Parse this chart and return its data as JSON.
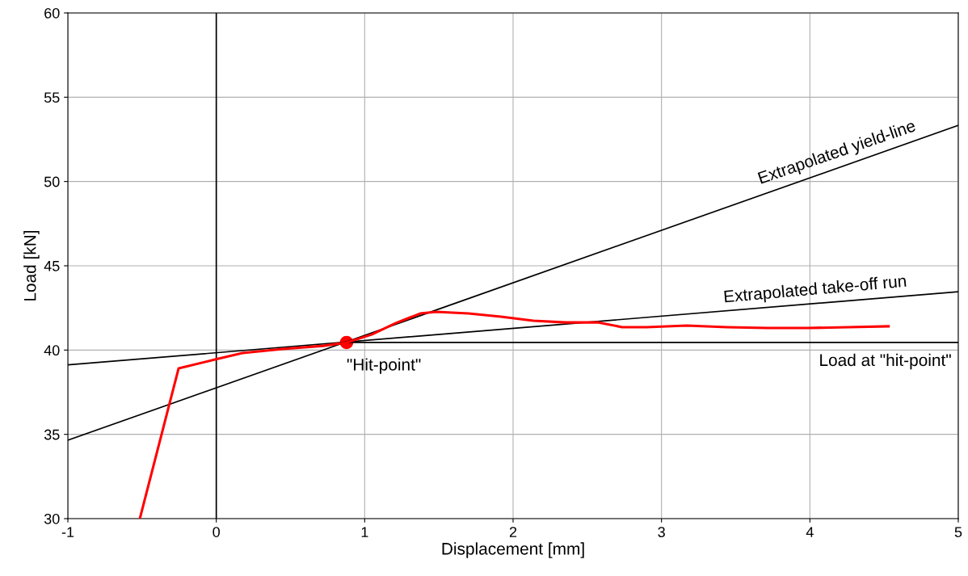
{
  "chart_data": {
    "type": "line",
    "xlabel": "Displacement [mm]",
    "ylabel": "Load [kN]",
    "xlim": [
      -1,
      5
    ],
    "ylim": [
      30,
      60
    ],
    "xticks": [
      -1,
      0,
      1,
      2,
      3,
      4,
      5
    ],
    "yticks": [
      30,
      35,
      40,
      45,
      50,
      55,
      60
    ],
    "grid": true,
    "legend": false,
    "series": [
      {
        "color": "#000000",
        "x": [
          -1,
          5
        ],
        "values": [
          34.65,
          53.33
        ]
      },
      {
        "color": "#000000",
        "x": [
          -1,
          5
        ],
        "values": [
          39.12,
          43.46
        ]
      },
      {
        "color": "#000000",
        "x": [
          0.878,
          5
        ],
        "values": [
          40.45,
          40.45
        ]
      },
      {
        "color": "#ff0000",
        "x": [
          -0.515,
          -0.254,
          -0.009,
          0.176,
          0.448,
          0.72,
          0.878,
          1.047,
          1.21,
          1.374,
          1.483,
          1.7,
          1.918,
          2.136,
          2.354,
          2.57,
          2.735,
          2.9,
          3.17,
          3.44,
          3.715,
          3.987,
          4.26,
          4.53
        ],
        "values": [
          30,
          38.91,
          39.44,
          39.82,
          40.06,
          40.25,
          40.45,
          40.92,
          41.6,
          42.17,
          42.27,
          42.17,
          41.98,
          41.74,
          41.64,
          41.64,
          41.36,
          41.36,
          41.45,
          41.36,
          41.31,
          41.31,
          41.36,
          41.41
        ]
      },
      {
        "type": "scatter",
        "marker": "circle",
        "color": "#ff0000",
        "x": [
          0.878
        ],
        "values": [
          40.45
        ]
      }
    ],
    "ref_lines": [
      {
        "axis": "x",
        "value": 0,
        "color": "#000000"
      }
    ],
    "annotations": [
      {
        "text": "Extrapolated yield-line",
        "x": 4.2,
        "y": 50.84
      },
      {
        "text": "Extrapolated take-off run",
        "x": 4.04,
        "y": 42.76
      },
      {
        "text": "Load at \"hit-point\"",
        "x": 5,
        "y": 40.45
      },
      {
        "text": "\"Hit-point\"",
        "x": 0.878,
        "y": 40.45
      }
    ]
  }
}
